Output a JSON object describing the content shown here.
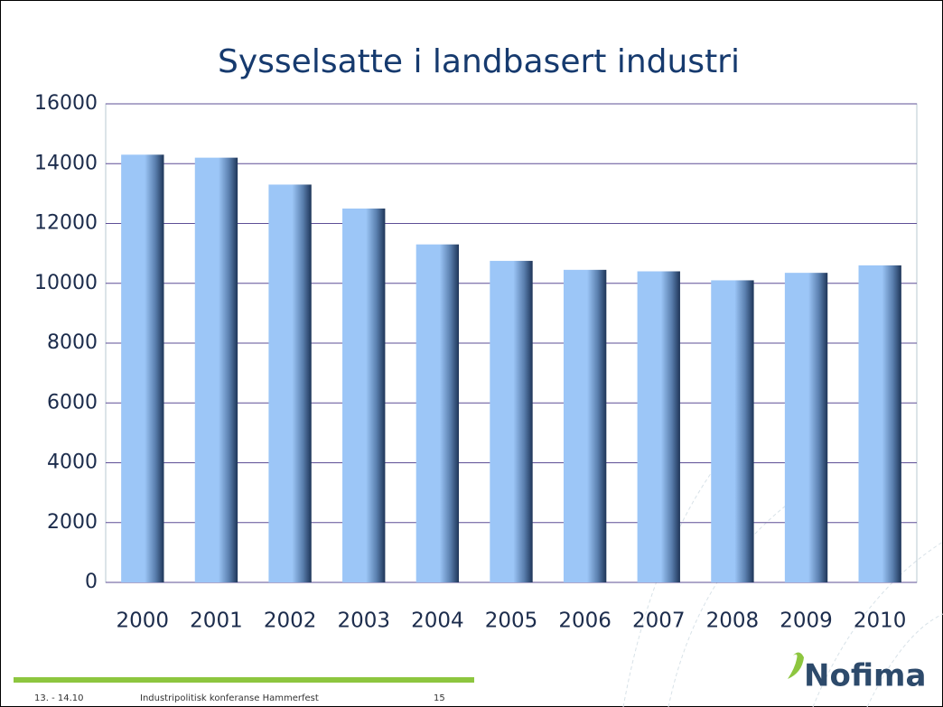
{
  "chart_data": {
    "type": "bar",
    "title": "Sysselsatte i landbasert industri",
    "categories": [
      "2000",
      "2001",
      "2002",
      "2003",
      "2004",
      "2005",
      "2006",
      "2007",
      "2008",
      "2009",
      "2010"
    ],
    "values": [
      14300,
      14200,
      13300,
      12500,
      11300,
      10750,
      10450,
      10400,
      10100,
      10350,
      10600
    ],
    "color": "#9cc6f7",
    "ylim": [
      0,
      16000
    ],
    "yticks": [
      0,
      2000,
      4000,
      6000,
      8000,
      10000,
      12000,
      14000,
      16000
    ],
    "grid": true
  },
  "footer": {
    "date": "13. - 14.10",
    "event": "Industripolitisk konferanse Hammerfest",
    "page": "15",
    "logo": "Nofima"
  }
}
